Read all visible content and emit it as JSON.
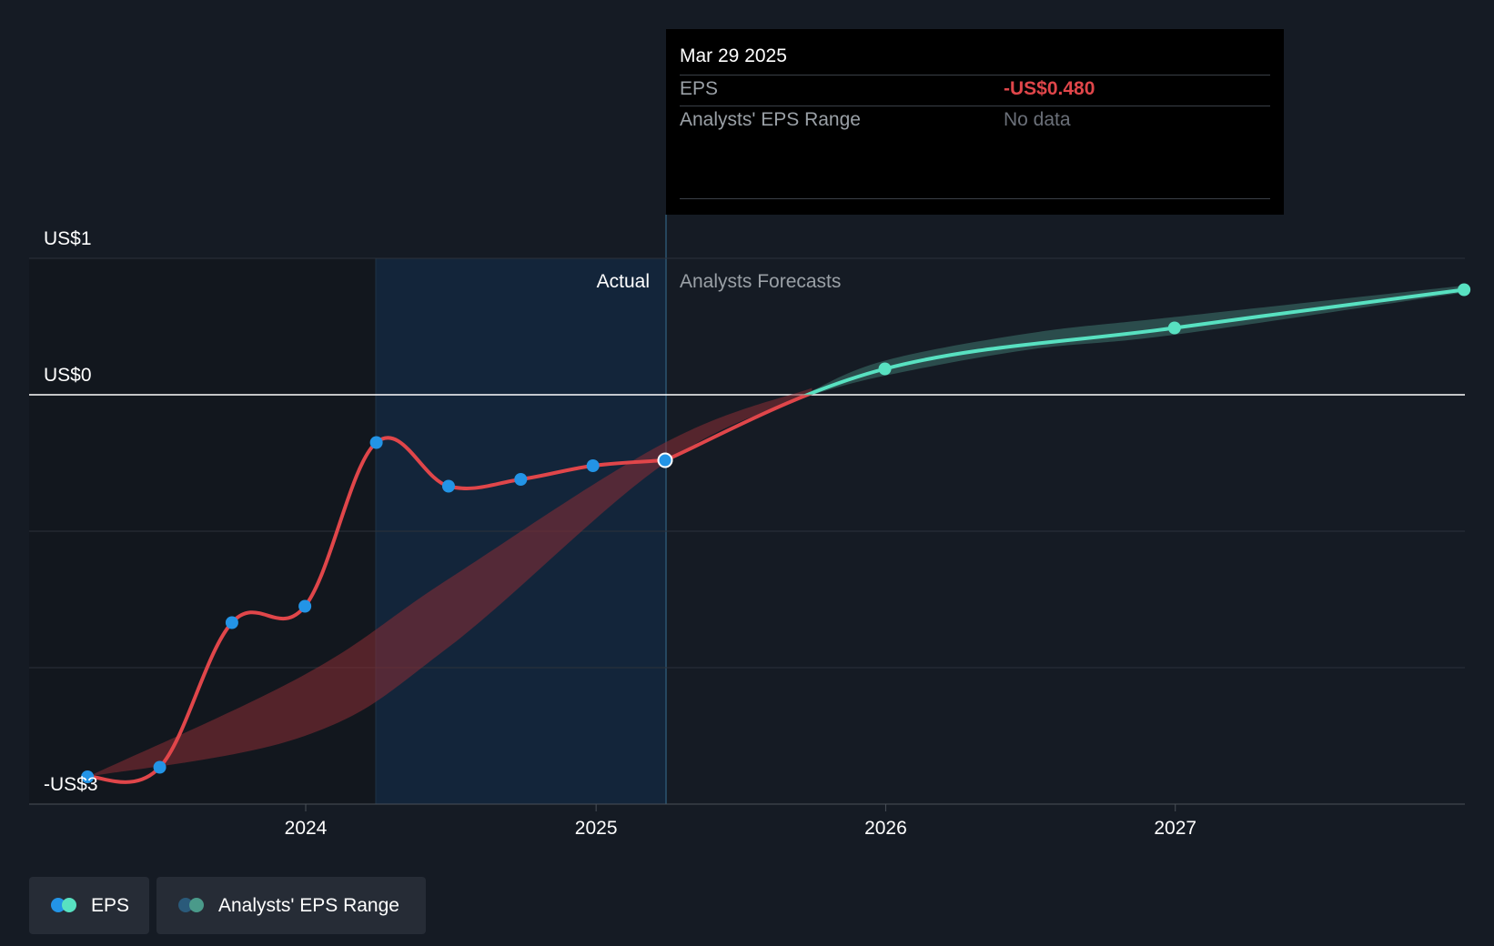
{
  "tooltip": {
    "date": "Mar 29 2025",
    "rows": [
      {
        "label": "EPS",
        "value": "-US$0.480"
      },
      {
        "label": "Analysts' EPS Range",
        "value": "No data"
      }
    ]
  },
  "section_labels": {
    "actual": "Actual",
    "forecast": "Analysts Forecasts"
  },
  "legend": [
    {
      "label": "EPS",
      "colors": [
        "#2394e6",
        "#58e1c1"
      ]
    },
    {
      "label": "Analysts' EPS Range",
      "colors": [
        "#2a5a7a",
        "#4a9a8a"
      ]
    }
  ],
  "colors": {
    "background": "#151b24",
    "actual_eps": "#e0464a",
    "actual_points": "#2394e6",
    "forecast_eps": "#58e1c1",
    "past_range_band": "#8a2e35",
    "forecast_range_band": "#3b6e68"
  },
  "chart_data": {
    "type": "line",
    "y_tick_labels": [
      {
        "value": 1,
        "label": "US$1"
      },
      {
        "value": 0,
        "label": "US$0"
      },
      {
        "value": -3,
        "label": "-US$3"
      }
    ],
    "ylim": [
      -3,
      1
    ],
    "x_tick_labels": [
      "2024",
      "2025",
      "2026",
      "2027"
    ],
    "xlim": [
      "2023-04-01",
      "2027-12-31"
    ],
    "actual_end": "2025-03-29",
    "series": [
      {
        "name": "EPS",
        "segment": "actual",
        "points": [
          {
            "x": "2023-04-01",
            "y": -2.8
          },
          {
            "x": "2023-07-01",
            "y": -2.73
          },
          {
            "x": "2023-09-30",
            "y": -1.67
          },
          {
            "x": "2023-12-31",
            "y": -1.55
          },
          {
            "x": "2024-03-30",
            "y": -0.35
          },
          {
            "x": "2024-06-29",
            "y": -0.67
          },
          {
            "x": "2024-09-28",
            "y": -0.62
          },
          {
            "x": "2024-12-28",
            "y": -0.52
          },
          {
            "x": "2025-03-29",
            "y": -0.48
          }
        ]
      },
      {
        "name": "EPS",
        "segment": "forecast",
        "points": [
          {
            "x": "2025-03-29",
            "y": -0.48
          },
          {
            "x": "2025-12-31",
            "y": 0.19
          },
          {
            "x": "2026-12-31",
            "y": 0.49
          },
          {
            "x": "2027-12-31",
            "y": 0.77
          }
        ]
      }
    ],
    "ranges": [
      {
        "name": "Analysts' EPS Range",
        "segment": "past",
        "points": [
          {
            "x": "2023-04-01",
            "low": -2.8,
            "high": -2.8
          },
          {
            "x": "2023-12-31",
            "low": -2.5,
            "high": -2.05
          },
          {
            "x": "2024-06-29",
            "low": -1.85,
            "high": -1.35
          },
          {
            "x": "2025-03-29",
            "low": -0.5,
            "high": -0.35
          },
          {
            "x": "2025-09-30",
            "low": 0.0,
            "high": 0.05
          }
        ]
      },
      {
        "name": "Analysts' EPS Range",
        "segment": "forecast",
        "points": [
          {
            "x": "2025-09-30",
            "low": 0.0,
            "high": 0.03
          },
          {
            "x": "2025-12-31",
            "low": 0.14,
            "high": 0.25
          },
          {
            "x": "2026-06-30",
            "low": 0.33,
            "high": 0.45
          },
          {
            "x": "2026-12-31",
            "low": 0.44,
            "high": 0.57
          },
          {
            "x": "2027-12-31",
            "low": 0.75,
            "high": 0.8
          }
        ]
      }
    ]
  }
}
